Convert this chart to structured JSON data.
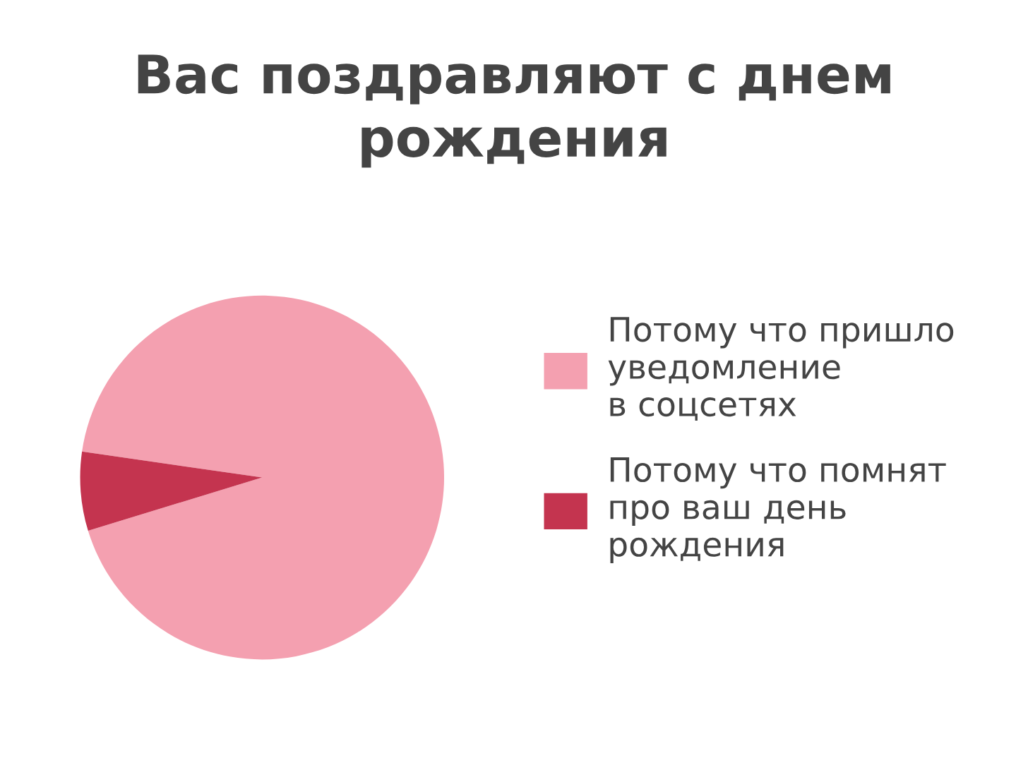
{
  "chart_data": {
    "type": "pie",
    "title": "Вас поздравляют с днем\nрождения",
    "categories": [
      "Потому что пришло\nуведомление\nв соцсетях",
      "Потому что помнят\nпро ваш день\nрождения"
    ],
    "values": [
      93,
      7
    ],
    "colors": [
      "#f4a0b0",
      "#c4344f"
    ],
    "legend": "right"
  }
}
